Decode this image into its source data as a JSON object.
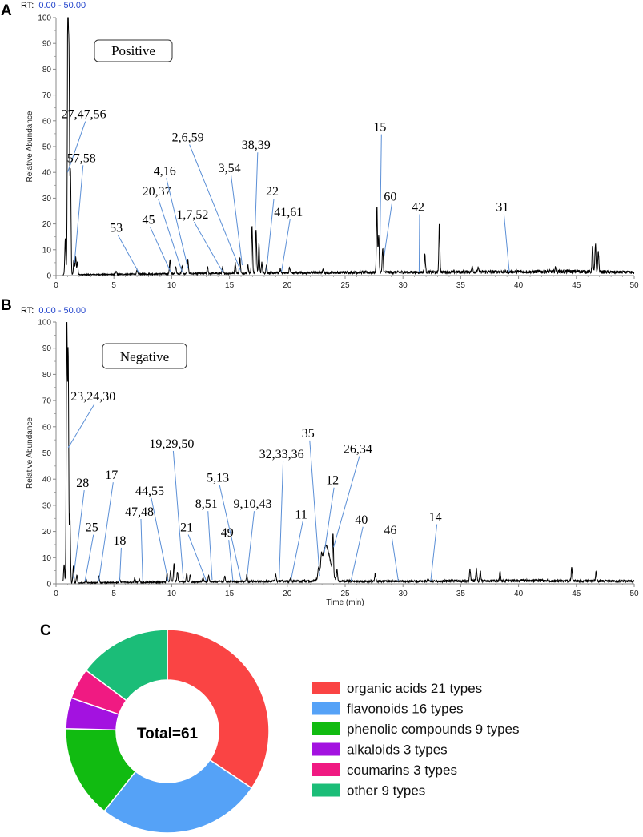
{
  "panels": {
    "A": {
      "letter": "A",
      "rt_prefix": "RT:",
      "rt_range": "0.00 - 50.00"
    },
    "B": {
      "letter": "B",
      "rt_prefix": "RT:",
      "rt_range": "0.00 - 50.00"
    },
    "C": {
      "letter": "C"
    }
  },
  "chart_data": [
    {
      "type": "line",
      "id": "positive-chromatogram",
      "mode_label": "Positive",
      "ylabel": "Relative Abundance",
      "xlabel": "",
      "xlim": [
        0,
        50
      ],
      "ylim": [
        0,
        100
      ],
      "xticks": [
        0,
        5,
        10,
        15,
        20,
        25,
        30,
        35,
        40,
        45,
        50
      ],
      "yticks": [
        0,
        10,
        20,
        30,
        40,
        50,
        60,
        70,
        80,
        90,
        100
      ],
      "baseline_noise": [
        [
          0,
          0.3
        ],
        [
          10,
          0.7
        ],
        [
          18,
          1.0
        ],
        [
          25,
          1.2
        ],
        [
          35,
          1.4
        ],
        [
          45,
          1.6
        ],
        [
          50,
          1.2
        ]
      ],
      "peaks": [
        {
          "rt": 0.8,
          "h": 14
        },
        {
          "rt": 1.02,
          "h": 100
        },
        {
          "rt": 1.12,
          "h": 80
        },
        {
          "rt": 1.25,
          "h": 40
        },
        {
          "rt": 1.55,
          "h": 6
        },
        {
          "rt": 1.7,
          "h": 7
        },
        {
          "rt": 1.85,
          "h": 5
        },
        {
          "rt": 5.2,
          "h": 1
        },
        {
          "rt": 7.0,
          "h": 1.5
        },
        {
          "rt": 9.85,
          "h": 5.5
        },
        {
          "rt": 10.35,
          "h": 3
        },
        {
          "rt": 10.9,
          "h": 3
        },
        {
          "rt": 11.4,
          "h": 5.5
        },
        {
          "rt": 13.1,
          "h": 2.5
        },
        {
          "rt": 14.4,
          "h": 2
        },
        {
          "rt": 15.5,
          "h": 4
        },
        {
          "rt": 15.9,
          "h": 6
        },
        {
          "rt": 16.6,
          "h": 3
        },
        {
          "rt": 16.95,
          "h": 18.5
        },
        {
          "rt": 17.3,
          "h": 17
        },
        {
          "rt": 17.55,
          "h": 11
        },
        {
          "rt": 17.8,
          "h": 4
        },
        {
          "rt": 18.2,
          "h": 3
        },
        {
          "rt": 19.4,
          "h": 1.5
        },
        {
          "rt": 20.2,
          "h": 2
        },
        {
          "rt": 23.1,
          "h": 1
        },
        {
          "rt": 27.75,
          "h": 25.5
        },
        {
          "rt": 27.9,
          "h": 14
        },
        {
          "rt": 28.25,
          "h": 9
        },
        {
          "rt": 31.9,
          "h": 7
        },
        {
          "rt": 33.15,
          "h": 18.5
        },
        {
          "rt": 36.0,
          "h": 2.5
        },
        {
          "rt": 36.5,
          "h": 1.5
        },
        {
          "rt": 43.2,
          "h": 1.5
        },
        {
          "rt": 46.4,
          "h": 9.5
        },
        {
          "rt": 46.65,
          "h": 10.5
        },
        {
          "rt": 46.9,
          "h": 8
        }
      ],
      "annotations": [
        {
          "label": "27,47,56",
          "x": 1.0,
          "y": 40,
          "tx": 2.4,
          "ty": 61
        },
        {
          "label": "57,58",
          "x": 1.6,
          "y": 5,
          "tx": 2.2,
          "ty": 44
        },
        {
          "label": "53",
          "x": 7.2,
          "y": 0.8,
          "tx": 5.2,
          "ty": 17
        },
        {
          "label": "45",
          "x": 9.9,
          "y": 1.5,
          "tx": 8.0,
          "ty": 20
        },
        {
          "label": "20,37",
          "x": 10.9,
          "y": 1.5,
          "tx": 8.7,
          "ty": 31
        },
        {
          "label": "4,16",
          "x": 11.4,
          "y": 3,
          "tx": 9.4,
          "ty": 39
        },
        {
          "label": "1,7,52",
          "x": 14.4,
          "y": 1.5,
          "tx": 11.8,
          "ty": 22
        },
        {
          "label": "2,6,59",
          "x": 15.95,
          "y": 2,
          "tx": 11.4,
          "ty": 52
        },
        {
          "label": "3,54",
          "x": 16.1,
          "y": 4,
          "tx": 15.0,
          "ty": 40
        },
        {
          "label": "38,39",
          "x": 17.2,
          "y": 16,
          "tx": 17.3,
          "ty": 49
        },
        {
          "label": "22",
          "x": 18.2,
          "y": 2,
          "tx": 18.7,
          "ty": 31
        },
        {
          "label": "41,61",
          "x": 19.5,
          "y": 1.5,
          "tx": 20.1,
          "ty": 23
        },
        {
          "label": "15",
          "x": 28.0,
          "y": 9,
          "tx": 28.0,
          "ty": 56
        },
        {
          "label": "60",
          "x": 28.35,
          "y": 7,
          "tx": 28.9,
          "ty": 29
        },
        {
          "label": "42",
          "x": 31.4,
          "y": 1.5,
          "tx": 31.3,
          "ty": 25
        },
        {
          "label": "31",
          "x": 39.2,
          "y": 1.5,
          "tx": 38.6,
          "ty": 25
        }
      ]
    },
    {
      "type": "line",
      "id": "negative-chromatogram",
      "mode_label": "Negative",
      "ylabel": "Relative Abundance",
      "xlabel": "Time (min)",
      "xlim": [
        0,
        50
      ],
      "ylim": [
        0,
        100
      ],
      "xticks": [
        0,
        5,
        10,
        15,
        20,
        25,
        30,
        35,
        40,
        45,
        50
      ],
      "yticks": [
        0,
        10,
        20,
        30,
        40,
        50,
        60,
        70,
        80,
        90,
        100
      ],
      "baseline_noise": [
        [
          0,
          0.3
        ],
        [
          10,
          0.7
        ],
        [
          20,
          1.0
        ],
        [
          30,
          1.0
        ],
        [
          40,
          1.2
        ],
        [
          50,
          1.0
        ]
      ],
      "peaks": [
        {
          "rt": 0.7,
          "h": 7
        },
        {
          "rt": 0.93,
          "h": 100
        },
        {
          "rt": 1.05,
          "h": 87
        },
        {
          "rt": 1.2,
          "h": 26
        },
        {
          "rt": 1.5,
          "h": 6.5
        },
        {
          "rt": 1.8,
          "h": 3
        },
        {
          "rt": 2.6,
          "h": 1.5
        },
        {
          "rt": 3.7,
          "h": 2.5
        },
        {
          "rt": 5.5,
          "h": 1.5
        },
        {
          "rt": 6.8,
          "h": 1.5
        },
        {
          "rt": 7.2,
          "h": 1
        },
        {
          "rt": 9.6,
          "h": 3.5
        },
        {
          "rt": 9.9,
          "h": 4.5
        },
        {
          "rt": 10.2,
          "h": 7
        },
        {
          "rt": 10.5,
          "h": 4
        },
        {
          "rt": 11.3,
          "h": 3.5
        },
        {
          "rt": 11.6,
          "h": 2.5
        },
        {
          "rt": 12.7,
          "h": 1.5
        },
        {
          "rt": 13.2,
          "h": 2.5
        },
        {
          "rt": 14.6,
          "h": 2
        },
        {
          "rt": 16.5,
          "h": 2.5
        },
        {
          "rt": 19.0,
          "h": 3
        },
        {
          "rt": 20.3,
          "h": 1.5
        },
        {
          "rt": 22.7,
          "h": 3
        },
        {
          "rt": 22.95,
          "h": 4
        },
        {
          "rt": 23.35,
          "h": 13.5,
          "w": 0.35
        },
        {
          "rt": 23.95,
          "h": 15
        },
        {
          "rt": 24.3,
          "h": 4
        },
        {
          "rt": 27.6,
          "h": 3
        },
        {
          "rt": 35.8,
          "h": 4.5
        },
        {
          "rt": 36.35,
          "h": 5
        },
        {
          "rt": 36.7,
          "h": 4
        },
        {
          "rt": 38.4,
          "h": 3.5
        },
        {
          "rt": 44.6,
          "h": 5
        },
        {
          "rt": 46.7,
          "h": 3.5
        }
      ],
      "annotations": [
        {
          "label": "23,24,30",
          "x": 1.05,
          "y": 52,
          "tx": 3.2,
          "ty": 70
        },
        {
          "label": "28",
          "x": 1.5,
          "y": 2,
          "tx": 2.3,
          "ty": 37
        },
        {
          "label": "25",
          "x": 2.5,
          "y": 1,
          "tx": 3.1,
          "ty": 20
        },
        {
          "label": "17",
          "x": 3.7,
          "y": 1,
          "tx": 4.8,
          "ty": 40
        },
        {
          "label": "18",
          "x": 5.5,
          "y": 1,
          "tx": 5.5,
          "ty": 15
        },
        {
          "label": "47,48",
          "x": 7.5,
          "y": 1,
          "tx": 7.2,
          "ty": 26
        },
        {
          "label": "44,55",
          "x": 9.7,
          "y": 1,
          "tx": 8.1,
          "ty": 34
        },
        {
          "label": "19,29,50",
          "x": 11.0,
          "y": 2,
          "tx": 10.0,
          "ty": 52
        },
        {
          "label": "21",
          "x": 13.0,
          "y": 1,
          "tx": 11.3,
          "ty": 20
        },
        {
          "label": "8,51",
          "x": 13.5,
          "y": 1.5,
          "tx": 13.0,
          "ty": 29
        },
        {
          "label": "49",
          "x": 15.3,
          "y": 1,
          "tx": 14.8,
          "ty": 18
        },
        {
          "label": "5,13",
          "x": 16.0,
          "y": 1.5,
          "tx": 14.0,
          "ty": 39
        },
        {
          "label": "9,10,43",
          "x": 16.5,
          "y": 2,
          "tx": 17.0,
          "ty": 29
        },
        {
          "label": "32,33,36",
          "x": 19.3,
          "y": 2,
          "tx": 19.5,
          "ty": 48
        },
        {
          "label": "11",
          "x": 20.3,
          "y": 1,
          "tx": 21.2,
          "ty": 25
        },
        {
          "label": "35",
          "x": 22.8,
          "y": 3,
          "tx": 21.8,
          "ty": 56
        },
        {
          "label": "12",
          "x": 23.2,
          "y": 12,
          "tx": 23.9,
          "ty": 38
        },
        {
          "label": "26,34",
          "x": 24.0,
          "y": 14,
          "tx": 26.1,
          "ty": 50
        },
        {
          "label": "40",
          "x": 25.5,
          "y": 1,
          "tx": 26.4,
          "ty": 23
        },
        {
          "label": "46",
          "x": 29.6,
          "y": 1,
          "tx": 28.9,
          "ty": 19
        },
        {
          "label": "14",
          "x": 32.4,
          "y": 1,
          "tx": 32.8,
          "ty": 24
        }
      ]
    },
    {
      "type": "pie",
      "id": "compound-classes",
      "donut": true,
      "center_label": "Total=61",
      "categories": [
        "organic acids",
        "flavonoids",
        "phenolic compounds",
        "alkaloids",
        "coumarins",
        "other"
      ],
      "values": [
        21,
        16,
        9,
        3,
        3,
        9
      ],
      "legend_labels": [
        "organic acids 21 types",
        "flavonoids 16 types",
        "phenolic compounds 9 types",
        "alkaloids 3 types",
        "coumarins 3 types",
        "other 9 types"
      ],
      "colors": [
        "#fa4444",
        "#55a2f7",
        "#11bb11",
        "#a312e0",
        "#f01a82",
        "#1bbd78"
      ],
      "legend_placement": "right"
    }
  ],
  "colors": {
    "trace": "#000000",
    "annotation_line": "#5b8fd6",
    "rt_value": "#2244cc"
  }
}
